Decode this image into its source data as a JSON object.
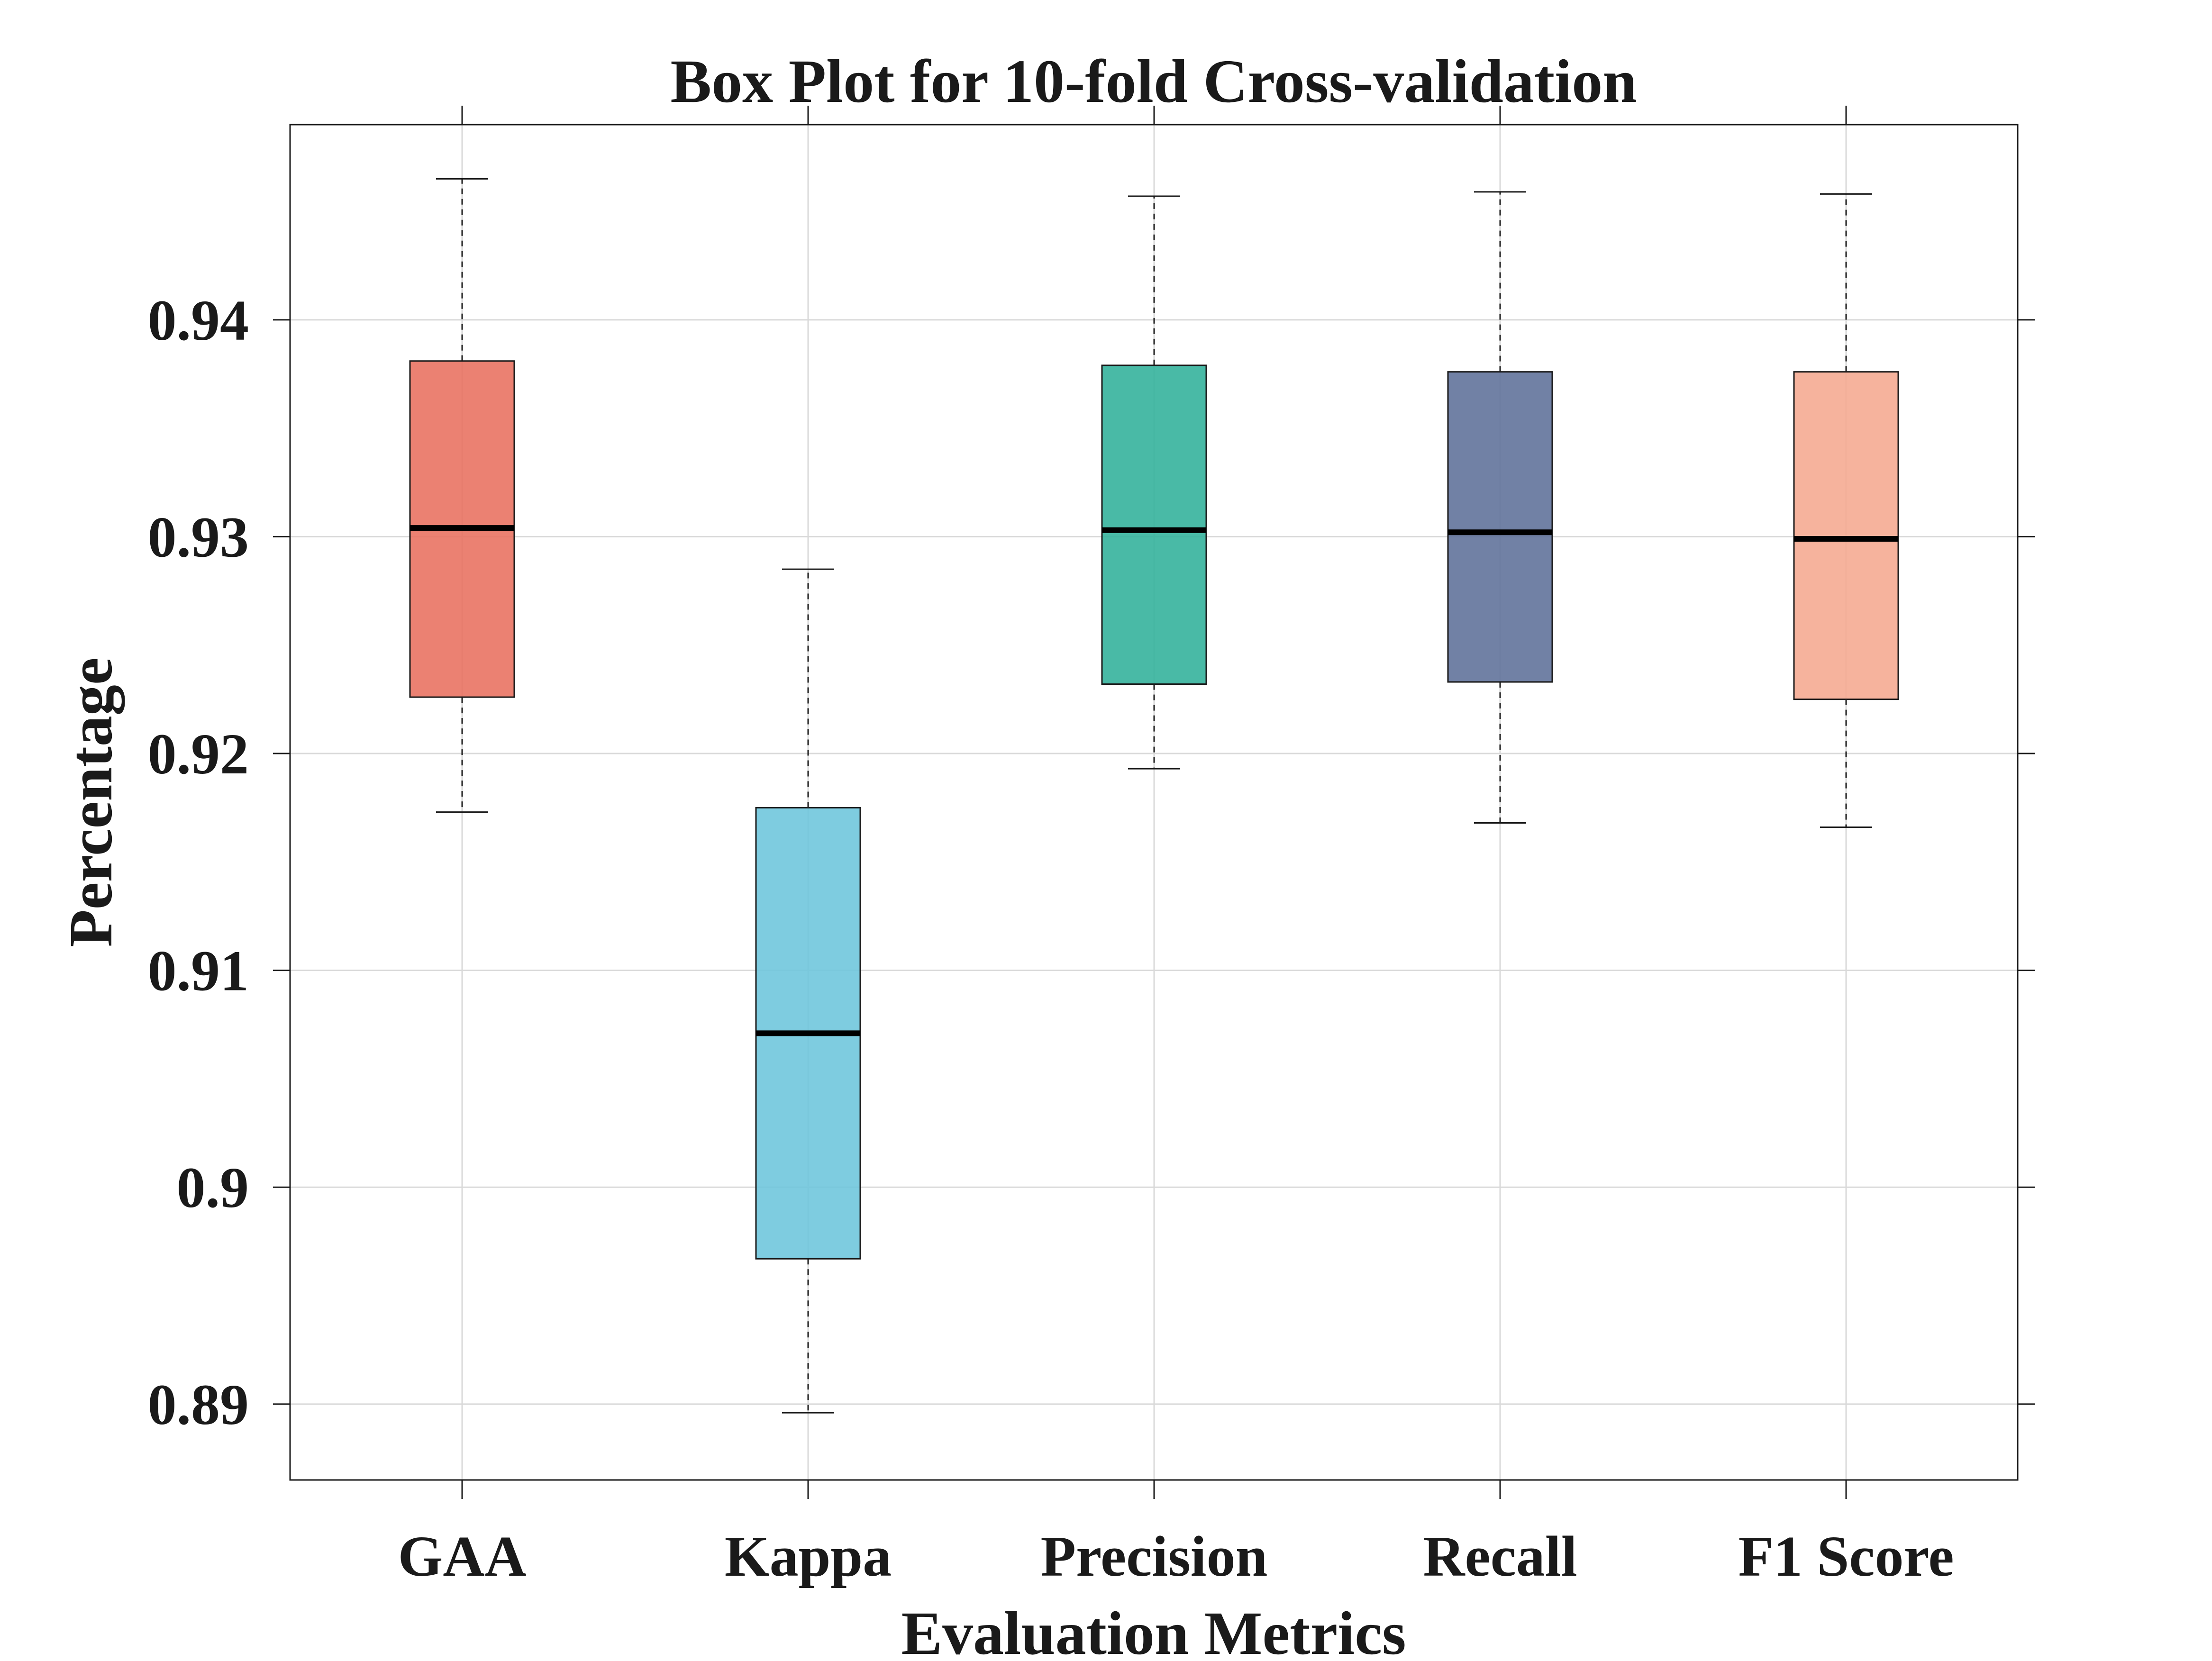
{
  "chart_data": {
    "type": "box",
    "title": "Box Plot for 10-fold Cross-validation",
    "xlabel": "Evaluation Metrics",
    "ylabel": "Percentage",
    "ylim": [
      0.8865,
      0.949
    ],
    "yticks": [
      0.89,
      0.9,
      0.91,
      0.92,
      0.93,
      0.94
    ],
    "ytick_labels": [
      "0.89",
      "0.9",
      "0.91",
      "0.92",
      "0.93",
      "0.94"
    ],
    "grid": true,
    "categories": [
      "GAA",
      "Kappa",
      "Precision",
      "Recall",
      "F1 Score"
    ],
    "boxes": [
      {
        "name": "GAA",
        "min": 0.9173,
        "q1": 0.9226,
        "median": 0.9304,
        "q3": 0.9381,
        "max": 0.9465,
        "color": "#E8705E"
      },
      {
        "name": "Kappa",
        "min": 0.8896,
        "q1": 0.8967,
        "median": 0.9071,
        "q3": 0.9175,
        "max": 0.9285,
        "color": "#6CC5DC"
      },
      {
        "name": "Precision",
        "min": 0.9193,
        "q1": 0.9232,
        "median": 0.9303,
        "q3": 0.9379,
        "max": 0.9457,
        "color": "#30B19A"
      },
      {
        "name": "Recall",
        "min": 0.9168,
        "q1": 0.9233,
        "median": 0.9302,
        "q3": 0.9376,
        "max": 0.9459,
        "color": "#5D6F99"
      },
      {
        "name": "F1 Score",
        "min": 0.9166,
        "q1": 0.9225,
        "median": 0.9299,
        "q3": 0.9376,
        "max": 0.9458,
        "color": "#F5A88F"
      }
    ]
  }
}
